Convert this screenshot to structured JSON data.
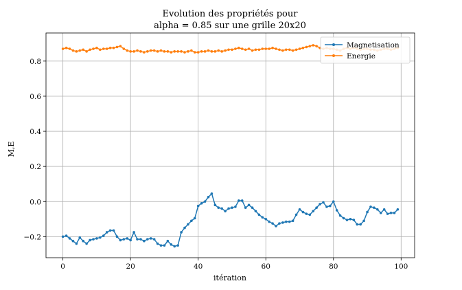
{
  "chart_data": {
    "type": "line",
    "title_lines": [
      "Evolution des propriétés pour",
      "alpha = 0.85 sur une grille 20x20"
    ],
    "xlabel": "itération",
    "ylabel": "M,E",
    "xlim": [
      -5,
      104
    ],
    "ylim": [
      -0.32,
      0.96
    ],
    "xticks": [
      0,
      20,
      40,
      60,
      80,
      100
    ],
    "yticks": [
      -0.2,
      0.0,
      0.2,
      0.4,
      0.6,
      0.8
    ],
    "ytick_labels": [
      "−0.2",
      "0.0",
      "0.2",
      "0.4",
      "0.6",
      "0.8"
    ],
    "grid": true,
    "legend_position": "top-right",
    "series": [
      {
        "name": "Magnetisation",
        "color": "#1f77b4",
        "marker": "dot",
        "values": [
          -0.2,
          -0.195,
          -0.21,
          -0.225,
          -0.24,
          -0.205,
          -0.225,
          -0.24,
          -0.22,
          -0.215,
          -0.21,
          -0.205,
          -0.195,
          -0.175,
          -0.165,
          -0.165,
          -0.2,
          -0.22,
          -0.215,
          -0.21,
          -0.22,
          -0.175,
          -0.215,
          -0.215,
          -0.225,
          -0.215,
          -0.21,
          -0.215,
          -0.24,
          -0.25,
          -0.25,
          -0.225,
          -0.245,
          -0.255,
          -0.25,
          -0.175,
          -0.15,
          -0.13,
          -0.11,
          -0.095,
          -0.025,
          -0.01,
          0.0,
          0.025,
          0.045,
          -0.02,
          -0.035,
          -0.04,
          -0.055,
          -0.04,
          -0.035,
          -0.03,
          0.005,
          0.005,
          -0.035,
          -0.02,
          -0.035,
          -0.055,
          -0.075,
          -0.09,
          -0.1,
          -0.115,
          -0.125,
          -0.14,
          -0.125,
          -0.12,
          -0.115,
          -0.115,
          -0.11,
          -0.075,
          -0.045,
          -0.06,
          -0.07,
          -0.075,
          -0.055,
          -0.035,
          -0.015,
          -0.005,
          -0.03,
          -0.025,
          0.0,
          -0.05,
          -0.08,
          -0.095,
          -0.105,
          -0.1,
          -0.105,
          -0.13,
          -0.13,
          -0.11,
          -0.06,
          -0.03,
          -0.035,
          -0.045,
          -0.065,
          -0.045,
          -0.07,
          -0.065,
          -0.065,
          -0.045
        ]
      },
      {
        "name": "Energie",
        "color": "#ff7f0e",
        "marker": "dot",
        "values": [
          0.87,
          0.875,
          0.87,
          0.86,
          0.855,
          0.86,
          0.865,
          0.855,
          0.865,
          0.87,
          0.875,
          0.865,
          0.87,
          0.87,
          0.875,
          0.875,
          0.88,
          0.885,
          0.87,
          0.86,
          0.855,
          0.855,
          0.86,
          0.855,
          0.85,
          0.855,
          0.86,
          0.86,
          0.855,
          0.86,
          0.855,
          0.855,
          0.85,
          0.855,
          0.855,
          0.855,
          0.85,
          0.855,
          0.86,
          0.85,
          0.85,
          0.855,
          0.855,
          0.86,
          0.855,
          0.855,
          0.86,
          0.855,
          0.86,
          0.865,
          0.865,
          0.87,
          0.875,
          0.87,
          0.865,
          0.87,
          0.86,
          0.865,
          0.865,
          0.87,
          0.87,
          0.87,
          0.875,
          0.87,
          0.865,
          0.86,
          0.865,
          0.865,
          0.86,
          0.865,
          0.87,
          0.875,
          0.88,
          0.885,
          0.89,
          0.885,
          0.875,
          0.87,
          0.875,
          0.87,
          0.87,
          0.865,
          0.86,
          0.87,
          0.875,
          0.87,
          0.875,
          0.87,
          0.865,
          0.87,
          0.87,
          0.865,
          0.865,
          0.86,
          0.865,
          0.87,
          0.87,
          0.865,
          0.87,
          0.875
        ]
      }
    ]
  }
}
